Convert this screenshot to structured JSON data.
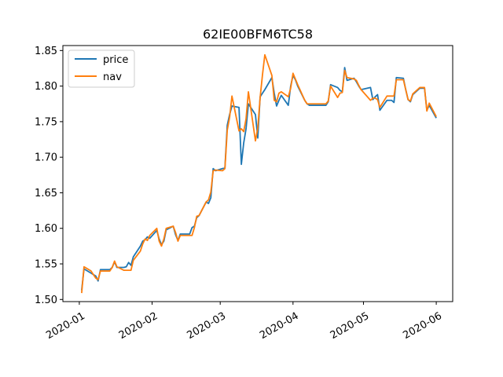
{
  "chart_data": {
    "type": "line",
    "title": "62IE00BFM6TC58",
    "xlabel": "",
    "ylabel": "",
    "x_ticks": [
      "2020-01",
      "2020-02",
      "2020-03",
      "2020-04",
      "2020-05",
      "2020-06"
    ],
    "y_ticks": [
      "1.50",
      "1.55",
      "1.60",
      "1.65",
      "1.70",
      "1.75",
      "1.80",
      "1.85"
    ],
    "xlim": [
      "2019-12-25",
      "2020-06-08"
    ],
    "ylim": [
      1.497,
      1.857
    ],
    "grid": false,
    "legend_position": "upper-left",
    "x": [
      "2020-01-02",
      "2020-01-03",
      "2020-01-06",
      "2020-01-07",
      "2020-01-08",
      "2020-01-09",
      "2020-01-10",
      "2020-01-13",
      "2020-01-14",
      "2020-01-15",
      "2020-01-16",
      "2020-01-17",
      "2020-01-20",
      "2020-01-21",
      "2020-01-22",
      "2020-01-23",
      "2020-01-24",
      "2020-01-27",
      "2020-01-28",
      "2020-01-29",
      "2020-01-30",
      "2020-01-31",
      "2020-02-03",
      "2020-02-04",
      "2020-02-05",
      "2020-02-06",
      "2020-02-07",
      "2020-02-10",
      "2020-02-11",
      "2020-02-12",
      "2020-02-13",
      "2020-02-14",
      "2020-02-17",
      "2020-02-18",
      "2020-02-19",
      "2020-02-20",
      "2020-02-21",
      "2020-02-24",
      "2020-02-25",
      "2020-02-26",
      "2020-02-27",
      "2020-02-28",
      "2020-03-02",
      "2020-03-03",
      "2020-03-04",
      "2020-03-05",
      "2020-03-06",
      "2020-03-09",
      "2020-03-10",
      "2020-03-11",
      "2020-03-12",
      "2020-03-13",
      "2020-03-16",
      "2020-03-17",
      "2020-03-18",
      "2020-03-19",
      "2020-03-20",
      "2020-03-23",
      "2020-03-24",
      "2020-03-25",
      "2020-03-26",
      "2020-03-27",
      "2020-03-30",
      "2020-03-31",
      "2020-04-01",
      "2020-04-02",
      "2020-04-03",
      "2020-04-06",
      "2020-04-07",
      "2020-04-08",
      "2020-04-09",
      "2020-04-14",
      "2020-04-15",
      "2020-04-16",
      "2020-04-17",
      "2020-04-20",
      "2020-04-21",
      "2020-04-22",
      "2020-04-23",
      "2020-04-24",
      "2020-04-27",
      "2020-04-28",
      "2020-04-29",
      "2020-04-30",
      "2020-05-04",
      "2020-05-05",
      "2020-05-06",
      "2020-05-07",
      "2020-05-08",
      "2020-05-11",
      "2020-05-12",
      "2020-05-13",
      "2020-05-14",
      "2020-05-15",
      "2020-05-18",
      "2020-05-19",
      "2020-05-20",
      "2020-05-21",
      "2020-05-22",
      "2020-05-25",
      "2020-05-26",
      "2020-05-27",
      "2020-05-28",
      "2020-05-29",
      "2020-06-01"
    ],
    "series": [
      {
        "name": "price",
        "color": "#1f77b4",
        "values": [
          1.513,
          1.543,
          1.537,
          1.535,
          1.533,
          1.526,
          1.542,
          1.542,
          1.542,
          1.545,
          1.553,
          1.545,
          1.545,
          1.546,
          1.552,
          1.548,
          1.56,
          1.575,
          1.582,
          1.584,
          1.588,
          1.586,
          1.597,
          1.585,
          1.577,
          1.582,
          1.598,
          1.603,
          1.591,
          1.583,
          1.592,
          1.592,
          1.592,
          1.601,
          1.603,
          1.615,
          1.618,
          1.637,
          1.635,
          1.643,
          1.684,
          1.681,
          1.684,
          1.685,
          1.745,
          1.76,
          1.772,
          1.77,
          1.69,
          1.72,
          1.74,
          1.775,
          1.76,
          1.727,
          1.785,
          1.79,
          1.795,
          1.812,
          1.79,
          1.772,
          1.78,
          1.787,
          1.773,
          1.8,
          1.815,
          1.809,
          1.8,
          1.78,
          1.775,
          1.773,
          1.773,
          1.773,
          1.773,
          1.778,
          1.802,
          1.798,
          1.794,
          1.792,
          1.826,
          1.808,
          1.811,
          1.806,
          1.8,
          1.795,
          1.798,
          1.781,
          1.785,
          1.788,
          1.766,
          1.78,
          1.78,
          1.78,
          1.777,
          1.812,
          1.811,
          1.795,
          1.781,
          1.778,
          1.788,
          1.797,
          1.797,
          1.797,
          1.766,
          1.773,
          1.755
        ]
      },
      {
        "name": "nav",
        "color": "#ff7f0e",
        "values": [
          1.509,
          1.546,
          1.54,
          1.535,
          1.53,
          1.528,
          1.54,
          1.54,
          1.54,
          1.545,
          1.554,
          1.546,
          1.541,
          1.541,
          1.541,
          1.541,
          1.555,
          1.568,
          1.578,
          1.585,
          1.583,
          1.59,
          1.6,
          1.582,
          1.575,
          1.585,
          1.6,
          1.603,
          1.594,
          1.582,
          1.59,
          1.59,
          1.59,
          1.59,
          1.601,
          1.617,
          1.618,
          1.637,
          1.64,
          1.651,
          1.681,
          1.682,
          1.681,
          1.684,
          1.738,
          1.756,
          1.786,
          1.737,
          1.74,
          1.736,
          1.754,
          1.792,
          1.723,
          1.741,
          1.784,
          1.816,
          1.844,
          1.815,
          1.78,
          1.778,
          1.79,
          1.792,
          1.785,
          1.797,
          1.818,
          1.81,
          1.802,
          1.78,
          1.775,
          1.775,
          1.775,
          1.775,
          1.775,
          1.779,
          1.8,
          1.784,
          1.79,
          1.791,
          1.822,
          1.812,
          1.81,
          1.808,
          1.801,
          1.795,
          1.78,
          1.783,
          1.783,
          1.781,
          1.77,
          1.786,
          1.786,
          1.786,
          1.786,
          1.809,
          1.809,
          1.795,
          1.781,
          1.779,
          1.789,
          1.798,
          1.798,
          1.798,
          1.765,
          1.776,
          1.757
        ]
      }
    ]
  }
}
